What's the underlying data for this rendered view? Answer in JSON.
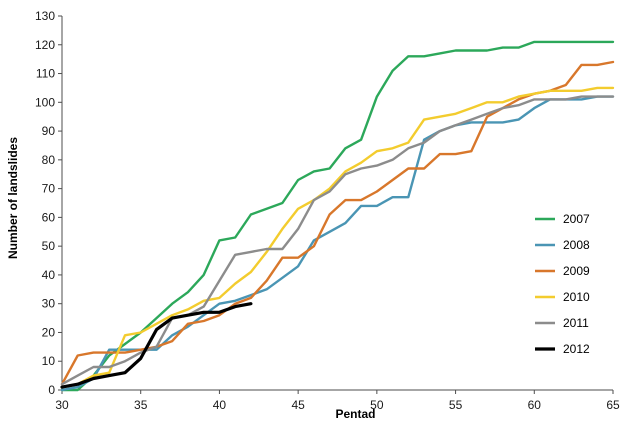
{
  "chart_data": {
    "type": "line",
    "title": "",
    "xlabel": "Pentad",
    "ylabel": "Number of landslides",
    "xlim": [
      30,
      65
    ],
    "ylim": [
      0,
      130
    ],
    "x_ticks": [
      30,
      35,
      40,
      45,
      50,
      55,
      60,
      65
    ],
    "y_ticks": [
      0,
      10,
      20,
      30,
      40,
      50,
      60,
      70,
      80,
      90,
      100,
      110,
      120,
      130
    ],
    "grid": false,
    "legend_position": "right",
    "series": [
      {
        "name": "2007",
        "color": "#2ca85a",
        "x": [
          30,
          31,
          32,
          33,
          34,
          35,
          36,
          37,
          38,
          39,
          40,
          41,
          42,
          43,
          44,
          45,
          46,
          47,
          48,
          49,
          50,
          51,
          52,
          53,
          54,
          55,
          56,
          57,
          58,
          59,
          60,
          61,
          62,
          63,
          64,
          65
        ],
        "values": [
          0,
          0,
          5,
          12,
          16,
          20,
          25,
          30,
          34,
          40,
          52,
          53,
          61,
          63,
          65,
          73,
          76,
          77,
          84,
          87,
          102,
          111,
          116,
          116,
          117,
          118,
          118,
          118,
          119,
          119,
          121,
          121,
          121,
          121,
          121,
          121
        ]
      },
      {
        "name": "2008",
        "color": "#4a95b4",
        "x": [
          30,
          31,
          32,
          33,
          34,
          35,
          36,
          37,
          38,
          39,
          40,
          41,
          42,
          43,
          44,
          45,
          46,
          47,
          48,
          49,
          50,
          51,
          52,
          53,
          54,
          55,
          56,
          57,
          58,
          59,
          60,
          61,
          62,
          63,
          64,
          65
        ],
        "values": [
          0,
          1,
          4,
          14,
          14,
          14,
          14,
          19,
          22,
          26,
          30,
          31,
          33,
          35,
          39,
          43,
          52,
          55,
          58,
          64,
          64,
          67,
          67,
          87,
          90,
          92,
          93,
          93,
          93,
          94,
          98,
          101,
          101,
          101,
          102,
          102
        ]
      },
      {
        "name": "2009",
        "color": "#d8772b",
        "x": [
          30,
          31,
          32,
          33,
          34,
          35,
          36,
          37,
          38,
          39,
          40,
          41,
          42,
          43,
          44,
          45,
          46,
          47,
          48,
          49,
          50,
          51,
          52,
          53,
          54,
          55,
          56,
          57,
          58,
          59,
          60,
          61,
          62,
          63,
          64,
          65
        ],
        "values": [
          2,
          12,
          13,
          13,
          13,
          14,
          15,
          17,
          23,
          24,
          26,
          30,
          32,
          38,
          46,
          46,
          50,
          61,
          66,
          66,
          69,
          73,
          77,
          77,
          82,
          82,
          83,
          95,
          98,
          101,
          103,
          104,
          106,
          113,
          113,
          114
        ]
      },
      {
        "name": "2010",
        "color": "#f3cc2e",
        "x": [
          30,
          31,
          32,
          33,
          34,
          35,
          36,
          37,
          38,
          39,
          40,
          41,
          42,
          43,
          44,
          45,
          46,
          47,
          48,
          49,
          50,
          51,
          52,
          53,
          54,
          55,
          56,
          57,
          58,
          59,
          60,
          61,
          62,
          63,
          64,
          65
        ],
        "values": [
          1,
          2,
          5,
          6,
          19,
          20,
          23,
          26,
          28,
          31,
          32,
          37,
          41,
          48,
          56,
          63,
          66,
          70,
          76,
          79,
          83,
          84,
          86,
          94,
          95,
          96,
          98,
          100,
          100,
          102,
          103,
          104,
          104,
          104,
          105,
          105
        ]
      },
      {
        "name": "2011",
        "color": "#8c8c8c",
        "x": [
          30,
          31,
          32,
          33,
          34,
          35,
          36,
          37,
          38,
          39,
          40,
          41,
          42,
          43,
          44,
          45,
          46,
          47,
          48,
          49,
          50,
          51,
          52,
          53,
          54,
          55,
          56,
          57,
          58,
          59,
          60,
          61,
          62,
          63,
          64,
          65
        ],
        "values": [
          2,
          5,
          8,
          8,
          10,
          13,
          15,
          25,
          26,
          29,
          38,
          47,
          48,
          49,
          49,
          56,
          66,
          69,
          75,
          77,
          78,
          80,
          84,
          86,
          90,
          92,
          94,
          96,
          98,
          99,
          101,
          101,
          101,
          102,
          102,
          102
        ]
      },
      {
        "name": "2012",
        "color": "#000000",
        "x": [
          30,
          31,
          32,
          33,
          34,
          35,
          36,
          37,
          38,
          39,
          40,
          41,
          42
        ],
        "values": [
          1,
          2,
          4,
          5,
          6,
          11,
          21,
          25,
          26,
          27,
          27,
          29,
          30
        ]
      }
    ]
  }
}
